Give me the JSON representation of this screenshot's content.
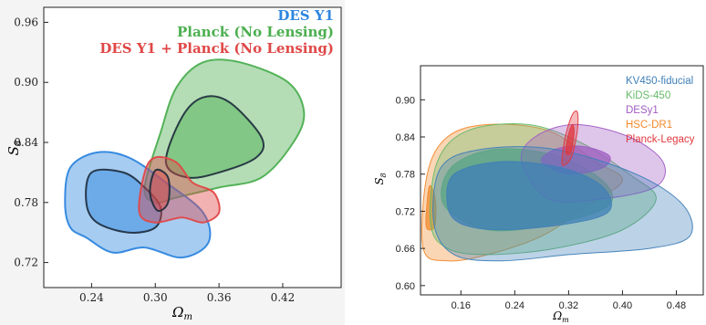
{
  "chart_data": [
    {
      "type": "contour",
      "xlabel": "Ω",
      "xlabel_sub": "m",
      "ylabel": "S",
      "ylabel_sub": "8",
      "xlim": [
        0.195,
        0.475
      ],
      "ylim": [
        0.695,
        0.975
      ],
      "xticks": [
        0.24,
        0.3,
        0.36,
        0.42
      ],
      "yticks": [
        0.72,
        0.78,
        0.84,
        0.9,
        0.96
      ],
      "tick_labels": {
        "x": [
          "0.24",
          "0.30",
          "0.36",
          "0.42"
        ],
        "y": [
          "0.72",
          "0.78",
          "0.84",
          "0.90",
          "0.96"
        ]
      },
      "legend_position": "top-right",
      "legend": [
        "DES Y1",
        "Planck (No Lensing)",
        "DES Y1 + Planck (No Lensing)"
      ],
      "series": [
        {
          "name": "Planck (No Lensing)",
          "color": "#4caf50",
          "center": [
            0.345,
            0.825
          ],
          "contour_95": [
            [
              0.29,
              0.795
            ],
            [
              0.305,
              0.85
            ],
            [
              0.32,
              0.895
            ],
            [
              0.345,
              0.92
            ],
            [
              0.38,
              0.92
            ],
            [
              0.425,
              0.9
            ],
            [
              0.44,
              0.87
            ],
            [
              0.43,
              0.84
            ],
            [
              0.4,
              0.805
            ],
            [
              0.36,
              0.795
            ],
            [
              0.32,
              0.785
            ],
            [
              0.3,
              0.78
            ]
          ],
          "contour_68": [
            [
              0.31,
              0.82
            ],
            [
              0.325,
              0.865
            ],
            [
              0.345,
              0.885
            ],
            [
              0.37,
              0.88
            ],
            [
              0.4,
              0.845
            ],
            [
              0.395,
              0.825
            ],
            [
              0.36,
              0.81
            ],
            [
              0.33,
              0.805
            ]
          ]
        },
        {
          "name": "DES Y1",
          "color": "#2e86de",
          "center": [
            0.27,
            0.78
          ],
          "contour_95": [
            [
              0.215,
              0.78
            ],
            [
              0.22,
              0.815
            ],
            [
              0.245,
              0.83
            ],
            [
              0.275,
              0.825
            ],
            [
              0.31,
              0.8
            ],
            [
              0.345,
              0.77
            ],
            [
              0.35,
              0.74
            ],
            [
              0.325,
              0.725
            ],
            [
              0.29,
              0.735
            ],
            [
              0.26,
              0.73
            ],
            [
              0.235,
              0.745
            ],
            [
              0.22,
              0.755
            ]
          ],
          "contour_68": [
            [
              0.235,
              0.78
            ],
            [
              0.24,
              0.81
            ],
            [
              0.27,
              0.81
            ],
            [
              0.29,
              0.795
            ],
            [
              0.305,
              0.775
            ],
            [
              0.3,
              0.755
            ],
            [
              0.275,
              0.75
            ],
            [
              0.245,
              0.76
            ]
          ]
        },
        {
          "name": "DES Y1 + Planck (No Lensing)",
          "color": "#e04848",
          "center": [
            0.31,
            0.79
          ],
          "contour_95": [
            [
              0.285,
              0.77
            ],
            [
              0.29,
              0.81
            ],
            [
              0.3,
              0.825
            ],
            [
              0.32,
              0.82
            ],
            [
              0.335,
              0.8
            ],
            [
              0.355,
              0.79
            ],
            [
              0.36,
              0.77
            ],
            [
              0.345,
              0.76
            ],
            [
              0.325,
              0.765
            ],
            [
              0.3,
              0.76
            ]
          ],
          "contour_68": [
            [
              0.295,
              0.79
            ],
            [
              0.3,
              0.812
            ],
            [
              0.312,
              0.805
            ],
            [
              0.312,
              0.78
            ],
            [
              0.302,
              0.772
            ]
          ]
        }
      ]
    },
    {
      "type": "contour",
      "xlabel": "Ω",
      "xlabel_sub": "m",
      "ylabel": "S",
      "ylabel_sub": "8",
      "xlim": [
        0.1,
        0.52
      ],
      "ylim": [
        0.585,
        0.955
      ],
      "xticks": [
        0.16,
        0.24,
        0.32,
        0.4,
        0.48
      ],
      "yticks": [
        0.6,
        0.66,
        0.72,
        0.78,
        0.84,
        0.9
      ],
      "tick_labels": {
        "x": [
          "0.16",
          "0.24",
          "0.32",
          "0.40",
          "0.48"
        ],
        "y": [
          "0.60",
          "0.66",
          "0.72",
          "0.78",
          "0.84",
          "0.90"
        ]
      },
      "legend_position": "top-right",
      "legend": [
        "KV450-fiducial",
        "KiDS-450",
        "DESy1",
        "HSC-DR1",
        "Planck-Legacy"
      ],
      "series": [
        {
          "name": "HSC-DR1",
          "color": "#f28a2c",
          "contour_95": [
            [
              0.104,
              0.66
            ],
            [
              0.11,
              0.78
            ],
            [
              0.14,
              0.84
            ],
            [
              0.2,
              0.86
            ],
            [
              0.29,
              0.85
            ],
            [
              0.36,
              0.8
            ],
            [
              0.4,
              0.77
            ],
            [
              0.35,
              0.73
            ],
            [
              0.28,
              0.68
            ],
            [
              0.2,
              0.65
            ],
            [
              0.14,
              0.64
            ]
          ],
          "contour_68": [
            [
              0.108,
              0.7
            ],
            [
              0.113,
              0.76
            ],
            [
              0.122,
              0.74
            ],
            [
              0.122,
              0.7
            ],
            [
              0.115,
              0.69
            ]
          ]
        },
        {
          "name": "KiDS-450",
          "color": "#66bb6a",
          "contour_95": [
            [
              0.115,
              0.7
            ],
            [
              0.125,
              0.8
            ],
            [
              0.17,
              0.85
            ],
            [
              0.26,
              0.86
            ],
            [
              0.34,
              0.83
            ],
            [
              0.41,
              0.78
            ],
            [
              0.45,
              0.74
            ],
            [
              0.4,
              0.69
            ],
            [
              0.3,
              0.66
            ],
            [
              0.2,
              0.65
            ],
            [
              0.14,
              0.66
            ]
          ],
          "contour_68": [
            [
              0.135,
              0.73
            ],
            [
              0.145,
              0.79
            ],
            [
              0.21,
              0.82
            ],
            [
              0.3,
              0.81
            ],
            [
              0.37,
              0.77
            ],
            [
              0.38,
              0.73
            ],
            [
              0.3,
              0.7
            ],
            [
              0.2,
              0.69
            ]
          ]
        },
        {
          "name": "DESy1",
          "color": "#a15cc4",
          "contour_95": [
            [
              0.25,
              0.8
            ],
            [
              0.27,
              0.84
            ],
            [
              0.33,
              0.86
            ],
            [
              0.41,
              0.84
            ],
            [
              0.46,
              0.8
            ],
            [
              0.45,
              0.76
            ],
            [
              0.37,
              0.74
            ],
            [
              0.29,
              0.74
            ]
          ],
          "contour_68": [
            [
              0.28,
              0.8
            ],
            [
              0.3,
              0.82
            ],
            [
              0.34,
              0.825
            ],
            [
              0.38,
              0.81
            ],
            [
              0.37,
              0.79
            ],
            [
              0.32,
              0.78
            ]
          ]
        },
        {
          "name": "KV450-fiducial",
          "color": "#3f7fb8",
          "contour_95": [
            [
              0.12,
              0.7
            ],
            [
              0.13,
              0.79
            ],
            [
              0.19,
              0.82
            ],
            [
              0.3,
              0.82
            ],
            [
              0.42,
              0.78
            ],
            [
              0.49,
              0.73
            ],
            [
              0.5,
              0.68
            ],
            [
              0.44,
              0.66
            ],
            [
              0.32,
              0.65
            ],
            [
              0.22,
              0.64
            ],
            [
              0.15,
              0.65
            ]
          ],
          "contour_68": [
            [
              0.14,
              0.73
            ],
            [
              0.15,
              0.78
            ],
            [
              0.22,
              0.8
            ],
            [
              0.31,
              0.79
            ],
            [
              0.37,
              0.76
            ],
            [
              0.38,
              0.72
            ],
            [
              0.32,
              0.7
            ],
            [
              0.22,
              0.69
            ],
            [
              0.16,
              0.7
            ]
          ]
        },
        {
          "name": "Planck-Legacy",
          "color": "#e0383e",
          "center": [
            0.32,
            0.83
          ],
          "contour_95": [
            [
              0.31,
              0.8
            ],
            [
              0.315,
              0.84
            ],
            [
              0.325,
              0.875
            ],
            [
              0.333,
              0.88
            ],
            [
              0.333,
              0.85
            ],
            [
              0.325,
              0.81
            ],
            [
              0.315,
              0.795
            ]
          ],
          "contour_68": [
            [
              0.316,
              0.815
            ],
            [
              0.32,
              0.845
            ],
            [
              0.326,
              0.86
            ],
            [
              0.328,
              0.845
            ],
            [
              0.323,
              0.815
            ]
          ]
        }
      ]
    }
  ]
}
